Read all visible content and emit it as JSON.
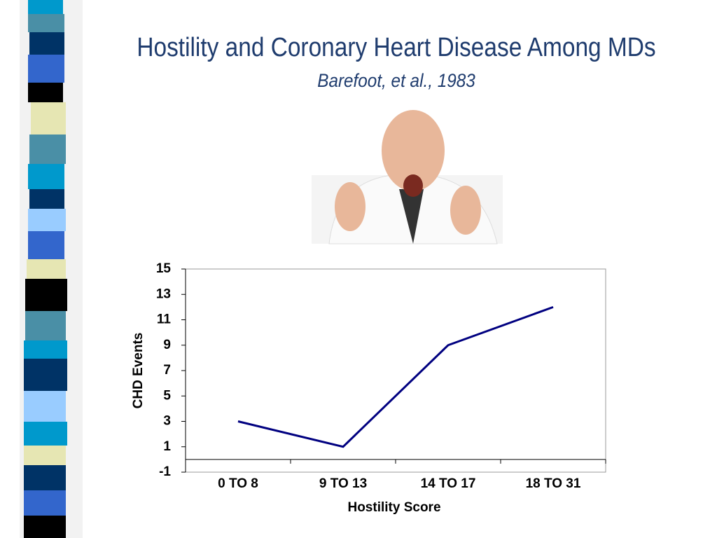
{
  "chart_data": {
    "type": "line",
    "title": "Hostility and Coronary Heart Disease Among MDs",
    "subtitle": "Barefoot, et al., 1983",
    "x_label": "Hostility Score",
    "y_label": "CHD Events",
    "categories": [
      "0 TO 8",
      "9 TO 13",
      "14 TO 17",
      "18 TO 31"
    ],
    "values": [
      3,
      1,
      9,
      12
    ],
    "color": "#000080",
    "ylim": [
      -1,
      15
    ],
    "yticks": [
      -1,
      1,
      3,
      5,
      7,
      9,
      11,
      13,
      15
    ],
    "grid": false
  }
}
